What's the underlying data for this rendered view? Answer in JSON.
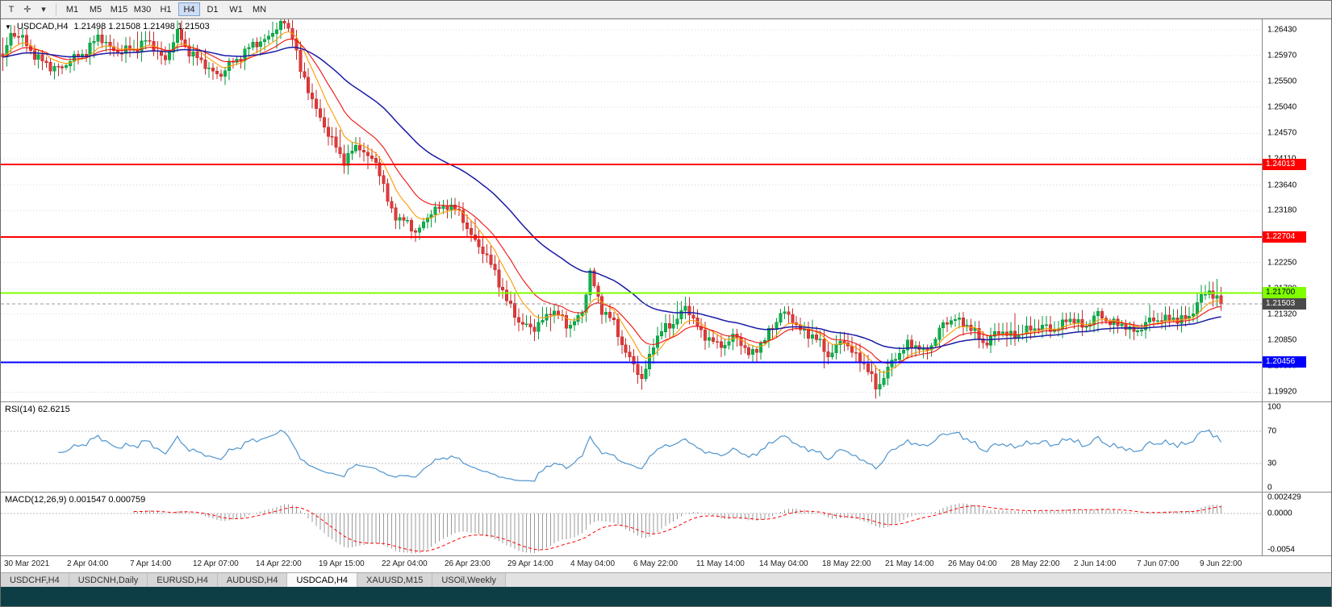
{
  "toolbar": {
    "tool_icons": [
      {
        "name": "templates-icon",
        "glyph": "T"
      },
      {
        "name": "crosshair-tool-icon",
        "glyph": "✛"
      },
      {
        "name": "dropdown-arrow-icon",
        "glyph": "▾"
      }
    ],
    "timeframes": [
      "M1",
      "M5",
      "M15",
      "M30",
      "H1",
      "H4",
      "D1",
      "W1",
      "MN"
    ],
    "active_timeframe": "H4"
  },
  "chart_header": {
    "collapse_icon": "▼",
    "title": "USDCAD,H4",
    "ohlc": "1.21498 1.21508 1.21498 1.21503"
  },
  "price_axis": {
    "labels": [
      "1.26430",
      "1.25970",
      "1.25500",
      "1.25040",
      "1.24570",
      "1.24110",
      "1.23640",
      "1.23180",
      "1.22710",
      "1.22250",
      "1.21780",
      "1.21320",
      "1.20850",
      "1.20390",
      "1.19920"
    ]
  },
  "chart_data": {
    "type": "candlestick",
    "symbol": "USDCAD",
    "timeframe": "H4",
    "price_min": 1.1975,
    "price_max": 1.2662,
    "candle_count": 308,
    "close_anchors": [
      [
        0,
        1.259
      ],
      [
        2,
        1.2642
      ],
      [
        6,
        1.2615
      ],
      [
        12,
        1.2572
      ],
      [
        18,
        1.2588
      ],
      [
        24,
        1.2628
      ],
      [
        30,
        1.26
      ],
      [
        36,
        1.2622
      ],
      [
        41,
        1.2592
      ],
      [
        44,
        1.2634
      ],
      [
        50,
        1.2582
      ],
      [
        55,
        1.2562
      ],
      [
        60,
        1.26
      ],
      [
        65,
        1.2622
      ],
      [
        71,
        1.2655
      ],
      [
        73,
        1.264
      ],
      [
        75,
        1.2565
      ],
      [
        78,
        1.252
      ],
      [
        82,
        1.2452
      ],
      [
        86,
        1.2412
      ],
      [
        90,
        1.2432
      ],
      [
        94,
        1.2405
      ],
      [
        97,
        1.2335
      ],
      [
        100,
        1.2302
      ],
      [
        104,
        1.2282
      ],
      [
        108,
        1.2312
      ],
      [
        112,
        1.2332
      ],
      [
        116,
        1.2302
      ],
      [
        120,
        1.2252
      ],
      [
        124,
        1.2212
      ],
      [
        127,
        1.2152
      ],
      [
        130,
        1.2122
      ],
      [
        134,
        1.2102
      ],
      [
        138,
        1.2142
      ],
      [
        142,
        1.2112
      ],
      [
        146,
        1.2132
      ],
      [
        148,
        1.2205
      ],
      [
        151,
        1.2142
      ],
      [
        154,
        1.2112
      ],
      [
        158,
        1.2052
      ],
      [
        161,
        1.2012
      ],
      [
        164,
        1.2082
      ],
      [
        168,
        1.2112
      ],
      [
        172,
        1.2142
      ],
      [
        176,
        1.2102
      ],
      [
        180,
        1.2072
      ],
      [
        184,
        1.2092
      ],
      [
        188,
        1.2062
      ],
      [
        192,
        1.2082
      ],
      [
        196,
        1.2138
      ],
      [
        200,
        1.2112
      ],
      [
        204,
        1.2092
      ],
      [
        208,
        1.2062
      ],
      [
        212,
        1.2082
      ],
      [
        216,
        1.2052
      ],
      [
        220,
        1.2002
      ],
      [
        224,
        1.2042
      ],
      [
        228,
        1.2082
      ],
      [
        232,
        1.2062
      ],
      [
        236,
        1.2102
      ],
      [
        240,
        1.2128
      ],
      [
        244,
        1.2102
      ],
      [
        248,
        1.2082
      ],
      [
        252,
        1.2102
      ],
      [
        256,
        1.2092
      ],
      [
        260,
        1.2112
      ],
      [
        264,
        1.2102
      ],
      [
        268,
        1.2122
      ],
      [
        272,
        1.2112
      ],
      [
        276,
        1.2128
      ],
      [
        280,
        1.2118
      ],
      [
        284,
        1.2102
      ],
      [
        288,
        1.2112
      ],
      [
        292,
        1.2128
      ],
      [
        296,
        1.2118
      ],
      [
        300,
        1.2138
      ],
      [
        304,
        1.2178
      ],
      [
        307,
        1.21503
      ]
    ],
    "colors": {
      "up": "#0cb14b",
      "up_stroke": "#089a3f",
      "down": "#e03a3a",
      "down_stroke": "#c32c2c",
      "ma_fast": "#ff9900",
      "ma_mid": "#ee1111",
      "ma_slow": "#1a1aa6",
      "grid": "#d4d4d4"
    },
    "ma_periods": {
      "fast": 8,
      "mid": 16,
      "slow": 45
    },
    "hlines": [
      {
        "price": 1.24013,
        "label": "1.24013",
        "color": "#ff0000",
        "text_color": "#ffffff"
      },
      {
        "price": 1.22704,
        "label": "1.22704",
        "color": "#ff0000",
        "text_color": "#ffffff"
      },
      {
        "price": 1.217,
        "label": "1.21700",
        "color": "#7fff00",
        "text_color": "#000000"
      },
      {
        "price": 1.20456,
        "label": "1.20456",
        "color": "#0000ff",
        "text_color": "#ffffff"
      }
    ],
    "current_price": {
      "value": 1.21503,
      "label": "1.21503",
      "badge_color": "#4a4a4a",
      "text_color": "#ffffff"
    }
  },
  "rsi_pane": {
    "label": "RSI(14) 62.6215",
    "period": 14,
    "value": 62.6215,
    "line_color": "#4f94cd",
    "levels": [
      {
        "value": 100,
        "label": "100"
      },
      {
        "value": 70,
        "label": "70"
      },
      {
        "value": 30,
        "label": "30"
      },
      {
        "value": 0,
        "label": "0"
      }
    ]
  },
  "macd_pane": {
    "label": "MACD(12,26,9) 0.001547 0.000759",
    "fast": 12,
    "slow": 26,
    "signal": 9,
    "macd_value": 0.001547,
    "signal_value": 0.000759,
    "histogram_color": "#9a9a9a",
    "signal_color": "#ff0000",
    "range_min": -0.006,
    "range_max": 0.0028,
    "scale": [
      {
        "value": 0.002429,
        "label": "0.002429"
      },
      {
        "value": 0,
        "label": "0.0000"
      },
      {
        "value": -0.0054,
        "label": "-0.0054"
      }
    ]
  },
  "time_axis": {
    "labels": [
      "30 Mar 2021",
      "2 Apr 04:00",
      "7 Apr 14:00",
      "12 Apr 07:00",
      "14 Apr 22:00",
      "19 Apr 15:00",
      "22 Apr 04:00",
      "26 Apr 23:00",
      "29 Apr 14:00",
      "4 May 04:00",
      "6 May 22:00",
      "11 May 14:00",
      "14 May 04:00",
      "18 May 22:00",
      "21 May 14:00",
      "26 May 04:00",
      "28 May 22:00",
      "2 Jun 14:00",
      "7 Jun 07:00",
      "9 Jun 22:00"
    ]
  },
  "tab_bar": {
    "tabs": [
      "USDCHF,H4",
      "USDCNH,Daily",
      "EURUSD,H4",
      "AUDUSD,H4",
      "USDCAD,H4",
      "XAUUSD,M15",
      "USOil,Weekly"
    ],
    "active": "USDCAD,H4"
  }
}
